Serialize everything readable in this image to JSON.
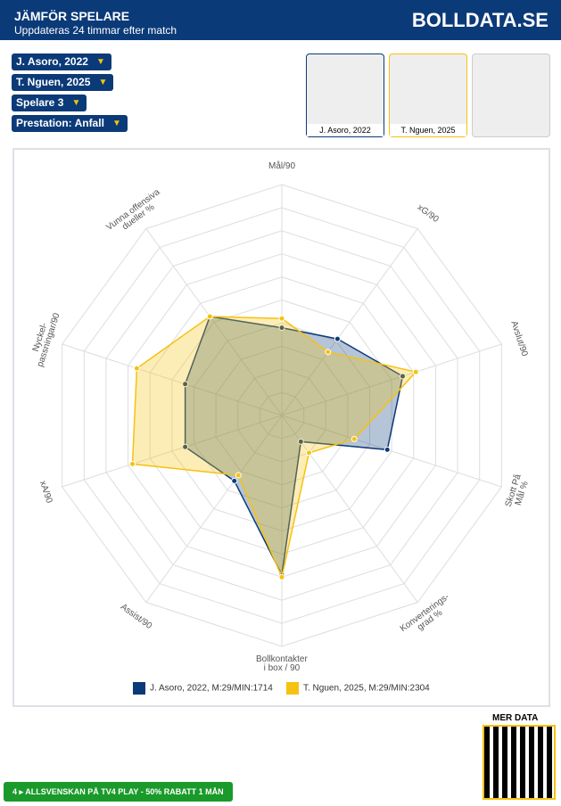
{
  "header": {
    "title": "JÄMFÖR SPELARE",
    "subtitle": "Uppdateras 24 timmar efter match",
    "logo": "BOLLDATA.SE"
  },
  "selectors": [
    "J. Asoro, 2022",
    "T. Nguen, 2025",
    "Spelare 3",
    "Prestation: Anfall"
  ],
  "players": [
    "J. Asoro, 2022",
    "T. Nguen, 2025"
  ],
  "chart_data": {
    "type": "radar",
    "categories": [
      "Mål/90",
      "xG/90",
      "Avslut/90",
      "Skott På\nMål %",
      "Konverterings-\ngrad %",
      "Bollkontakter\ni box / 90",
      "Assist/90",
      "xA/90",
      "Nyckel-\npassningar/90",
      "Vunna offensiva\ndueller %"
    ],
    "rlim": [
      0,
      100
    ],
    "grid_rings": 10,
    "series": [
      {
        "name": "J. Asoro, 2022, M:29/MIN:1714",
        "color": "#0b3a78",
        "values": [
          38,
          41,
          55,
          48,
          14,
          69,
          35,
          44,
          44,
          53
        ]
      },
      {
        "name": "T. Nguen, 2025, M:29/MIN:2304",
        "color": "#f5c211",
        "values": [
          42,
          34,
          61,
          33,
          20,
          70,
          32,
          68,
          66,
          53
        ]
      }
    ]
  },
  "more": "MER DATA",
  "footer": {
    "number": "4",
    "text": "ALLSVENSKAN PÅ TV4 PLAY - 50% RABATT 1 MÅN"
  }
}
